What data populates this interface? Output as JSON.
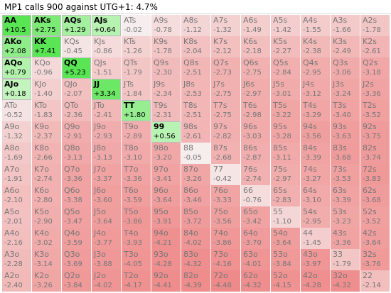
{
  "title": "MP1 calls 900 against UTG+1: 4.7%",
  "colors": {
    "strong_call": "#6fe36f",
    "call": "#c8f5c2",
    "break_even": "#f1f1f1",
    "fold_mild": "#f4c6c6",
    "fold_strong": "#ef8e8e"
  },
  "rows": [
    [
      [
        "AA",
        "+10.5"
      ],
      [
        "AKs",
        "+2.75"
      ],
      [
        "AQs",
        "+1.29"
      ],
      [
        "AJs",
        "+0.64"
      ],
      [
        "ATs",
        "-0.02"
      ],
      [
        "A9s",
        "-0.78"
      ],
      [
        "A8s",
        "-1.12"
      ],
      [
        "A7s",
        "-1.32"
      ],
      [
        "A6s",
        "-1.49"
      ],
      [
        "A5s",
        "-1.42"
      ],
      [
        "A4s",
        "-1.55"
      ],
      [
        "A3s",
        "-1.66"
      ],
      [
        "A2s",
        "-1.78"
      ]
    ],
    [
      [
        "AKo",
        "+2.08"
      ],
      [
        "KK",
        "+7.41"
      ],
      [
        "KQs",
        "-0.45"
      ],
      [
        "KJs",
        "-0.86"
      ],
      [
        "KTs",
        "-1.26"
      ],
      [
        "K9s",
        "-1.78"
      ],
      [
        "K8s",
        "-2.04"
      ],
      [
        "K7s",
        "-2.12"
      ],
      [
        "K6s",
        "-2.18"
      ],
      [
        "K5s",
        "-2.27"
      ],
      [
        "K4s",
        "-2.38"
      ],
      [
        "K3s",
        "-2.49"
      ],
      [
        "K2s",
        "-2.61"
      ]
    ],
    [
      [
        "AQo",
        "+0.79"
      ],
      [
        "KQo",
        "-0.96"
      ],
      [
        "QQ",
        "+5.23"
      ],
      [
        "QJs",
        "-1.51"
      ],
      [
        "QTs",
        "-1.79"
      ],
      [
        "Q9s",
        "-2.30"
      ],
      [
        "Q8s",
        "-2.51"
      ],
      [
        "Q7s",
        "-2.73"
      ],
      [
        "Q6s",
        "-2.75"
      ],
      [
        "Q5s",
        "-2.84"
      ],
      [
        "Q4s",
        "-2.95"
      ],
      [
        "Q3s",
        "-3.06"
      ],
      [
        "Q2s",
        "-3.18"
      ]
    ],
    [
      [
        "AJo",
        "+0.18"
      ],
      [
        "KJo",
        "-1.40"
      ],
      [
        "QJo",
        "-2.07"
      ],
      [
        "JJ",
        "+3.34"
      ],
      [
        "JTs",
        "-1.84"
      ],
      [
        "J9s",
        "-2.34"
      ],
      [
        "J8s",
        "-2.53"
      ],
      [
        "J7s",
        "-2.75"
      ],
      [
        "J6s",
        "-2.97"
      ],
      [
        "J5s",
        "-3.01"
      ],
      [
        "J4s",
        "-3.12"
      ],
      [
        "J3s",
        "-3.24"
      ],
      [
        "J2s",
        "-3.36"
      ]
    ],
    [
      [
        "ATo",
        "-0.52"
      ],
      [
        "KTo",
        "-1.83"
      ],
      [
        "QTo",
        "-2.36"
      ],
      [
        "JTo",
        "-2.41"
      ],
      [
        "TT",
        "+1.80"
      ],
      [
        "T9s",
        "-2.31"
      ],
      [
        "T8s",
        "-2.51"
      ],
      [
        "T7s",
        "-2.75"
      ],
      [
        "T6s",
        "-2.98"
      ],
      [
        "T5s",
        "-3.22"
      ],
      [
        "T4s",
        "-3.29"
      ],
      [
        "T3s",
        "-3.40"
      ],
      [
        "T2s",
        "-3.52"
      ]
    ],
    [
      [
        "A9o",
        "-1.32"
      ],
      [
        "K9o",
        "-2.37"
      ],
      [
        "Q9o",
        "-2.91"
      ],
      [
        "J9o",
        "-2.93"
      ],
      [
        "T9o",
        "-2.89"
      ],
      [
        "99",
        "+0.56"
      ],
      [
        "98s",
        "-2.61"
      ],
      [
        "97s",
        "-2.82"
      ],
      [
        "96s",
        "-3.03"
      ],
      [
        "95s",
        "-3.28"
      ],
      [
        "94s",
        "-3.56"
      ],
      [
        "93s",
        "-3.63"
      ],
      [
        "92s",
        "-3.75"
      ]
    ],
    [
      [
        "A8o",
        "-1.69"
      ],
      [
        "K8o",
        "-2.66"
      ],
      [
        "Q8o",
        "-3.13"
      ],
      [
        "J8o",
        "-3.13"
      ],
      [
        "T8o",
        "-3.10"
      ],
      [
        "98o",
        "-3.20"
      ],
      [
        "88",
        "-0.05"
      ],
      [
        "87s",
        "-2.68"
      ],
      [
        "86s",
        "-2.87"
      ],
      [
        "85s",
        "-3.11"
      ],
      [
        "84s",
        "-3.39"
      ],
      [
        "83s",
        "-3.68"
      ],
      [
        "82s",
        "-3.74"
      ]
    ],
    [
      [
        "A7o",
        "-1.91"
      ],
      [
        "K7o",
        "-2.74"
      ],
      [
        "Q7o",
        "-3.36"
      ],
      [
        "J7o",
        "-3.37"
      ],
      [
        "T7o",
        "-3.36"
      ],
      [
        "97o",
        "-3.41"
      ],
      [
        "87o",
        "-3.26"
      ],
      [
        "77",
        "-0.42"
      ],
      [
        "76s",
        "-2.74"
      ],
      [
        "75s",
        "-2.97"
      ],
      [
        "74s",
        "-3.27"
      ],
      [
        "73s",
        "-3.53"
      ],
      [
        "72s",
        "-3.83"
      ]
    ],
    [
      [
        "A6o",
        "-2.10"
      ],
      [
        "K6o",
        "-2.80"
      ],
      [
        "Q6o",
        "-3.38"
      ],
      [
        "J6o",
        "-3.60"
      ],
      [
        "T6o",
        "-3.59"
      ],
      [
        "96o",
        "-3.64"
      ],
      [
        "86o",
        "-3.46"
      ],
      [
        "76o",
        "-3.33"
      ],
      [
        "66",
        "-0.76"
      ],
      [
        "65s",
        "-2.83"
      ],
      [
        "64s",
        "-3.10"
      ],
      [
        "63s",
        "-3.39"
      ],
      [
        "62s",
        "-3.68"
      ]
    ],
    [
      [
        "A5o",
        "-2.01"
      ],
      [
        "K5o",
        "-2.90"
      ],
      [
        "Q5o",
        "-3.47"
      ],
      [
        "J5o",
        "-3.64"
      ],
      [
        "T5o",
        "-3.86"
      ],
      [
        "95o",
        "-3.91"
      ],
      [
        "85o",
        "-3.72"
      ],
      [
        "75o",
        "-3.56"
      ],
      [
        "65o",
        "-3.42"
      ],
      [
        "55",
        "-1.10"
      ],
      [
        "54s",
        "-2.95"
      ],
      [
        "53s",
        "-3.23"
      ],
      [
        "52s",
        "-3.52"
      ]
    ],
    [
      [
        "A4o",
        "-2.16"
      ],
      [
        "K4o",
        "-3.02"
      ],
      [
        "Q4o",
        "-3.59"
      ],
      [
        "J4o",
        "-3.77"
      ],
      [
        "T4o",
        "-3.93"
      ],
      [
        "94o",
        "-4.21"
      ],
      [
        "84o",
        "-4.02"
      ],
      [
        "74o",
        "-3.86"
      ],
      [
        "64o",
        "-3.70"
      ],
      [
        "54o",
        "-3.64"
      ],
      [
        "44",
        "-1.45"
      ],
      [
        "43s",
        "-3.36"
      ],
      [
        "42s",
        "-3.64"
      ]
    ],
    [
      [
        "A3o",
        "-2.28"
      ],
      [
        "K3o",
        "-3.14"
      ],
      [
        "Q3o",
        "-3.69"
      ],
      [
        "J3o",
        "-3.88"
      ],
      [
        "T3o",
        "-4.05"
      ],
      [
        "93o",
        "-4.28"
      ],
      [
        "83o",
        "-4.32"
      ],
      [
        "73o",
        "-4.16"
      ],
      [
        "63o",
        "-4.01"
      ],
      [
        "53o",
        "-3.84"
      ],
      [
        "43o",
        "-3.97"
      ],
      [
        "33",
        "-1.79"
      ],
      [
        "32s",
        "-3.76"
      ]
    ],
    [
      [
        "A2o",
        "-2.40"
      ],
      [
        "K2o",
        "-3.26"
      ],
      [
        "Q2o",
        "-3.84"
      ],
      [
        "J2o",
        "-4.02"
      ],
      [
        "T2o",
        "-4.17"
      ],
      [
        "92o",
        "-4.41"
      ],
      [
        "82o",
        "-4.39"
      ],
      [
        "72o",
        "-4.48"
      ],
      [
        "62o",
        "-4.32"
      ],
      [
        "52o",
        "-4.15"
      ],
      [
        "42o",
        "-4.28"
      ],
      [
        "32o",
        "-4.32"
      ],
      [
        "22",
        "-2.14"
      ]
    ]
  ]
}
